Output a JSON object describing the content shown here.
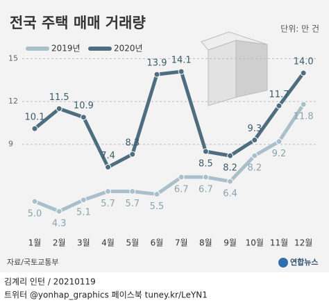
{
  "chart_data": {
    "type": "line",
    "title": "전국 주택 매매 거래량",
    "unit": "단위: 만 건",
    "categories": [
      "1월",
      "2월",
      "3월",
      "4월",
      "5월",
      "6월",
      "7월",
      "8월",
      "9월",
      "10월",
      "11월",
      "12월"
    ],
    "series": [
      {
        "name": "2019년",
        "color": "#a9c0cb",
        "values": [
          5.0,
          4.3,
          5.1,
          5.7,
          5.7,
          5.5,
          6.7,
          6.7,
          6.4,
          8.2,
          9.2,
          11.8
        ],
        "value_labels": [
          "5.0",
          "4.3",
          "5.1",
          "5.7",
          "5.7",
          "5.5",
          "6.7",
          "6.7",
          "6.4",
          "8.2",
          "9.2",
          "11.8"
        ]
      },
      {
        "name": "2020년",
        "color": "#4e6e7f",
        "values": [
          10.1,
          11.5,
          10.9,
          7.4,
          8.3,
          13.9,
          14.1,
          8.5,
          8.2,
          9.3,
          11.7,
          14.0
        ],
        "value_labels": [
          "10.1",
          "11.5",
          "10.9",
          "7.4",
          "8.3",
          "13.9",
          "14.1",
          "8.5",
          "8.2",
          "9.3",
          "11.7",
          "14.0"
        ]
      }
    ],
    "ylim": [
      2.8,
      16
    ],
    "yticks": [
      9,
      12,
      15
    ],
    "grid": true
  },
  "source": "자료/국토교통부",
  "logo": "연합뉴스",
  "credit": "김계리 인턴 / 20210119",
  "social": "트위터 @yonhap_graphics  페이스북 tuney.kr/LeYN1"
}
